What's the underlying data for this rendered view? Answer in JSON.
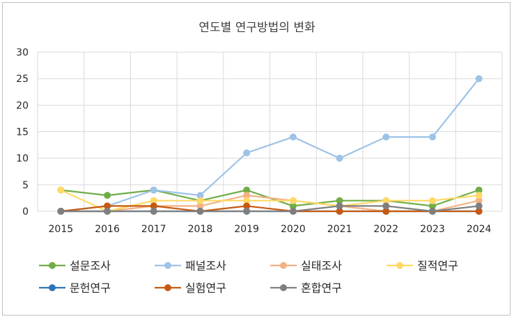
{
  "chart_data": {
    "type": "line",
    "title": "연도별 연구방법의 변화",
    "xlabel": "",
    "ylabel": "",
    "x": [
      "2015",
      "2016",
      "2017",
      "2018",
      "2019",
      "2020",
      "2021",
      "2022",
      "2023",
      "2024"
    ],
    "ylim": [
      0,
      30
    ],
    "yticks": [
      0,
      5,
      10,
      15,
      20,
      25,
      30
    ],
    "grid": true,
    "legend_position": "bottom",
    "series": [
      {
        "name": "설문조사",
        "color": "#70ad47",
        "values": [
          4,
          3,
          4,
          2,
          4,
          1,
          2,
          2,
          1,
          4
        ]
      },
      {
        "name": "패널조사",
        "color": "#9dc3e6",
        "values": [
          0,
          1,
          4,
          3,
          11,
          14,
          10,
          14,
          14,
          25
        ]
      },
      {
        "name": "실태조사",
        "color": "#f4b183",
        "values": [
          0,
          0,
          1,
          1,
          3,
          2,
          1,
          0,
          0,
          2
        ]
      },
      {
        "name": "질적연구",
        "color": "#ffd966",
        "values": [
          4,
          0,
          2,
          2,
          2,
          2,
          1,
          2,
          2,
          3
        ]
      },
      {
        "name": "문헌연구",
        "color": "#2e75b6",
        "values": [
          0,
          0,
          0,
          0,
          0,
          0,
          0,
          0,
          0,
          0
        ]
      },
      {
        "name": "실험연구",
        "color": "#c55a11",
        "values": [
          0,
          1,
          1,
          0,
          1,
          0,
          0,
          0,
          0,
          0
        ]
      },
      {
        "name": "혼합연구",
        "color": "#7f7f7f",
        "values": [
          0,
          0,
          0,
          0,
          0,
          0,
          1,
          1,
          0,
          1
        ]
      }
    ]
  }
}
